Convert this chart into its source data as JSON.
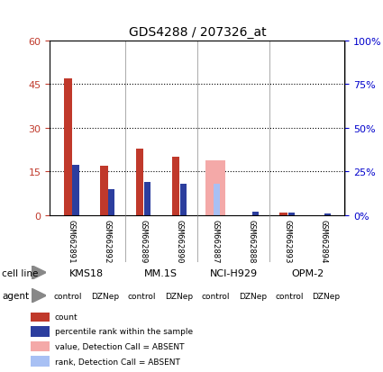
{
  "title": "GDS4288 / 207326_at",
  "samples": [
    "GSM662891",
    "GSM662892",
    "GSM662889",
    "GSM662890",
    "GSM662887",
    "GSM662888",
    "GSM662893",
    "GSM662894"
  ],
  "count_values": [
    47,
    17,
    23,
    20,
    0,
    0,
    1,
    0
  ],
  "rank_values": [
    29,
    15,
    19,
    18,
    0,
    2,
    1.5,
    1
  ],
  "absent_count": [
    0,
    0,
    0,
    0,
    19,
    0,
    0,
    0
  ],
  "absent_rank": [
    0,
    0,
    0,
    0,
    18,
    0,
    0,
    0
  ],
  "ylim_left": [
    0,
    60
  ],
  "ylim_right": [
    0,
    100
  ],
  "yticks_left": [
    0,
    15,
    30,
    45,
    60
  ],
  "ytick_labels_left": [
    "0",
    "15",
    "30",
    "45",
    "60"
  ],
  "yticks_right": [
    0,
    25,
    50,
    75,
    100
  ],
  "ytick_labels_right": [
    "0%",
    "25%",
    "50%",
    "75%",
    "100%"
  ],
  "cell_lines": [
    {
      "label": "KMS18",
      "start": 0,
      "end": 2
    },
    {
      "label": "MM.1S",
      "start": 2,
      "end": 4
    },
    {
      "label": "NCI-H929",
      "start": 4,
      "end": 6
    },
    {
      "label": "OPM-2",
      "start": 6,
      "end": 8
    }
  ],
  "agents": [
    "control",
    "DZNep",
    "control",
    "DZNep",
    "control",
    "DZNep",
    "control",
    "DZNep"
  ],
  "count_color": "#c0392b",
  "rank_color": "#2c3e9e",
  "absent_count_color": "#f4a9a8",
  "absent_rank_color": "#a8c0f4",
  "cell_line_color": "#90ee90",
  "agent_color": "#ee82ee",
  "label_color_left": "#c0392b",
  "label_color_right": "#0000cc",
  "bg_color": "#d3d3d3",
  "plot_bg": "#ffffff",
  "legend_items": [
    {
      "color": "#c0392b",
      "label": "count"
    },
    {
      "color": "#2c3e9e",
      "label": "percentile rank within the sample"
    },
    {
      "color": "#f4a9a8",
      "label": "value, Detection Call = ABSENT"
    },
    {
      "color": "#a8c0f4",
      "label": "rank, Detection Call = ABSENT"
    }
  ]
}
